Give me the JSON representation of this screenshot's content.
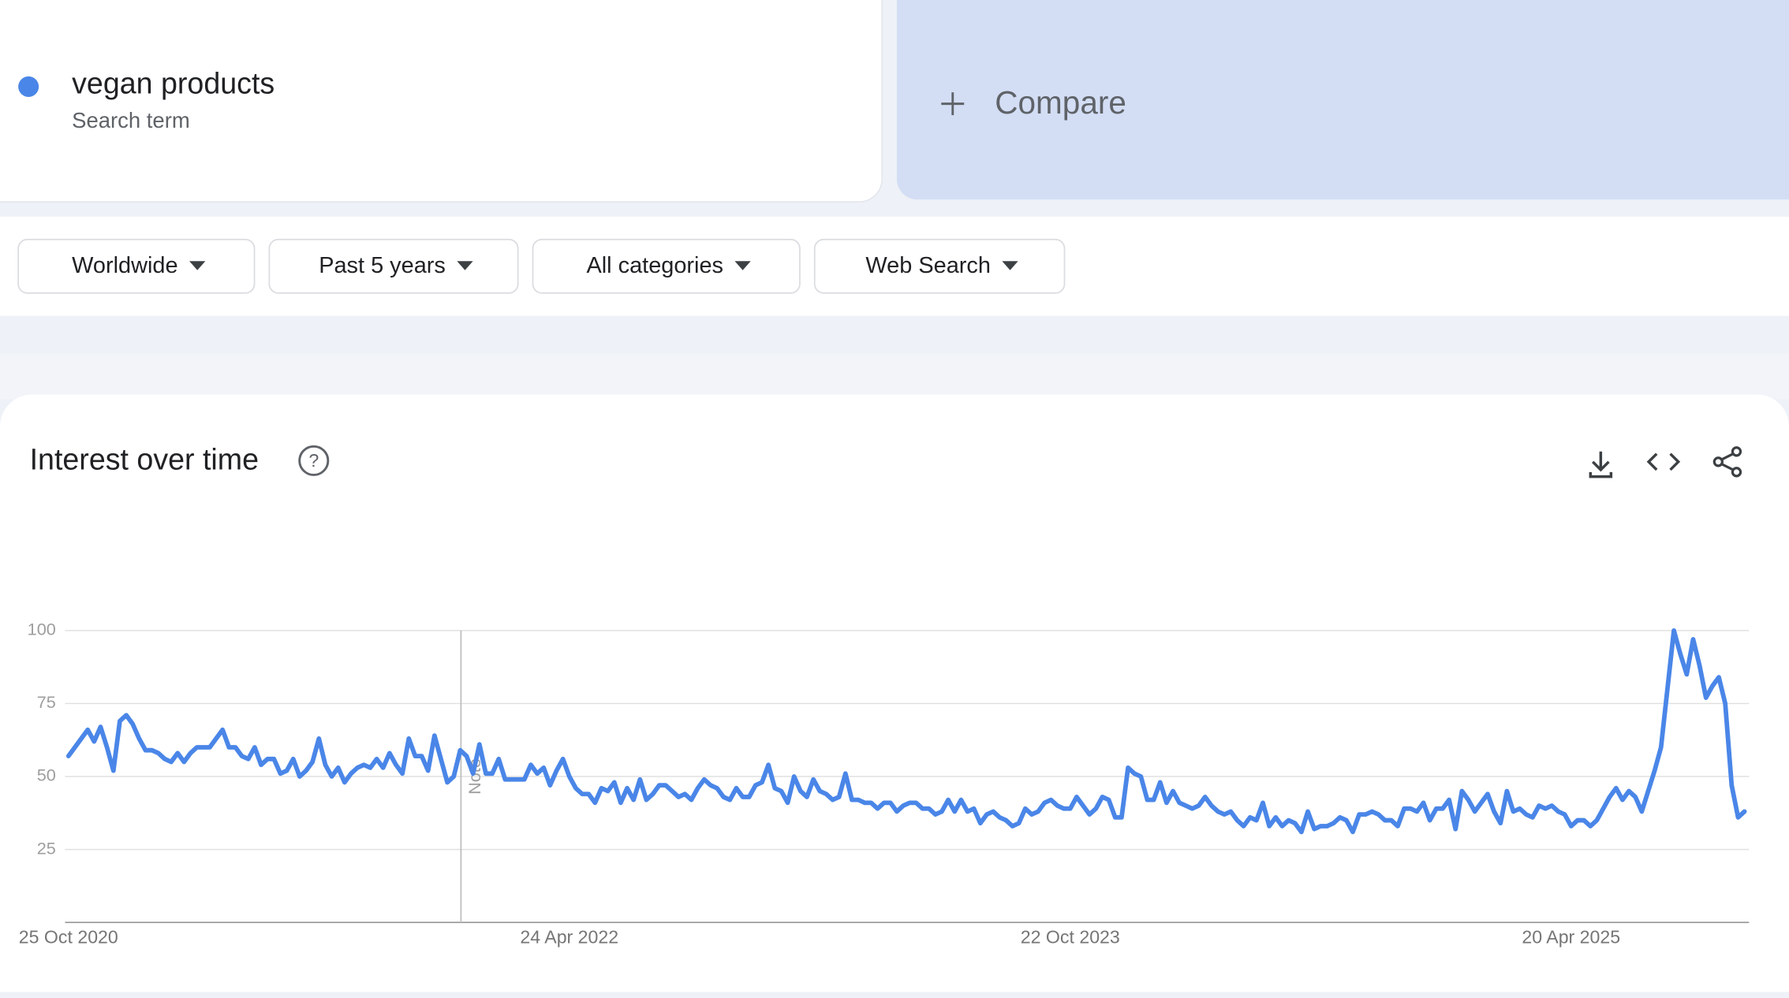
{
  "compare": "Compare",
  "search_term_label": "Search term",
  "filters": [
    "Worldwide",
    "Past 5 years",
    "All categories",
    "Web Search"
  ],
  "chart_data": {
    "type": "line",
    "title": "Interest over time",
    "annotation": "Note",
    "ylim": [
      0,
      100
    ],
    "yticks": [
      25,
      50,
      75,
      100
    ],
    "grid": true,
    "categories": [
      "25 Oct 2020",
      null,
      null,
      null,
      null,
      null,
      null,
      null,
      null,
      null,
      null,
      null,
      null,
      null,
      null,
      null,
      null,
      null,
      null,
      null,
      null,
      null,
      null,
      null,
      null,
      null,
      null,
      null,
      null,
      null,
      null,
      null,
      null,
      null,
      null,
      null,
      null,
      null,
      null,
      null,
      null,
      null,
      null,
      null,
      null,
      null,
      null,
      null,
      null,
      null,
      null,
      null,
      null,
      null,
      null,
      null,
      null,
      null,
      null,
      null,
      null,
      null,
      null,
      null,
      null,
      null,
      null,
      null,
      null,
      null,
      null,
      null,
      null,
      null,
      null,
      null,
      null,
      null,
      "24 Apr 2022",
      null,
      null,
      null,
      null,
      null,
      null,
      null,
      null,
      null,
      null,
      null,
      null,
      null,
      null,
      null,
      null,
      null,
      null,
      null,
      null,
      null,
      null,
      null,
      null,
      null,
      null,
      null,
      null,
      null,
      null,
      null,
      null,
      null,
      null,
      null,
      null,
      null,
      null,
      null,
      null,
      null,
      null,
      null,
      null,
      null,
      null,
      null,
      null,
      null,
      null,
      null,
      null,
      null,
      null,
      null,
      null,
      null,
      null,
      null,
      null,
      null,
      null,
      null,
      null,
      null,
      null,
      null,
      null,
      null,
      null,
      null,
      null,
      null,
      null,
      null,
      null,
      null,
      "22 Oct 2023",
      null,
      null,
      null,
      null,
      null,
      null,
      null,
      null,
      null,
      null,
      null,
      null,
      null,
      null,
      null,
      null,
      null,
      null,
      null,
      null,
      null,
      null,
      null,
      null,
      null,
      null,
      null,
      null,
      null,
      null,
      null,
      null,
      null,
      null,
      null,
      null,
      null,
      null,
      null,
      null,
      null,
      null,
      null,
      null,
      null,
      null,
      null,
      null,
      null,
      null,
      null,
      null,
      null,
      null,
      null,
      null,
      null,
      null,
      null,
      null,
      null,
      null,
      null,
      null,
      null,
      null,
      null,
      null,
      null,
      null,
      null,
      null,
      null,
      null,
      null,
      null,
      null,
      "20 Apr 2025",
      null,
      null,
      null,
      null,
      null,
      null,
      null,
      null,
      null,
      null,
      null,
      null,
      null,
      null,
      null,
      null,
      null,
      null,
      null,
      null,
      null,
      null,
      null,
      null,
      null,
      null,
      null
    ],
    "series": [
      {
        "name": "vegan products",
        "color": "#4a86e8",
        "values": [
          57,
          60,
          63,
          66,
          62,
          67,
          60,
          52,
          69,
          71,
          68,
          63,
          59,
          59,
          58,
          56,
          55,
          58,
          55,
          58,
          60,
          60,
          60,
          63,
          66,
          60,
          60,
          57,
          56,
          60,
          54,
          56,
          56,
          51,
          52,
          56,
          50,
          52,
          55,
          63,
          54,
          50,
          53,
          48,
          51,
          53,
          54,
          53,
          56,
          53,
          58,
          54,
          51,
          63,
          57,
          57,
          52,
          64,
          56,
          48,
          50,
          59,
          57,
          51,
          61,
          51,
          51,
          56,
          49,
          49,
          49,
          49,
          54,
          51,
          53,
          47,
          52,
          56,
          50,
          46,
          44,
          44,
          41,
          46,
          45,
          48,
          41,
          46,
          42,
          49,
          42,
          44,
          47,
          47,
          45,
          43,
          44,
          42,
          46,
          49,
          47,
          46,
          43,
          42,
          46,
          43,
          43,
          47,
          48,
          54,
          46,
          45,
          41,
          50,
          45,
          43,
          49,
          45,
          44,
          42,
          43,
          51,
          42,
          42,
          41,
          41,
          39,
          41,
          41,
          38,
          40,
          41,
          41,
          39,
          39,
          37,
          38,
          42,
          38,
          42,
          38,
          39,
          34,
          37,
          38,
          36,
          35,
          33,
          34,
          39,
          37,
          38,
          41,
          42,
          40,
          39,
          39,
          43,
          40,
          37,
          39,
          43,
          42,
          36,
          36,
          53,
          51,
          50,
          42,
          42,
          48,
          41,
          45,
          41,
          40,
          39,
          40,
          43,
          40,
          38,
          37,
          38,
          35,
          33,
          36,
          35,
          41,
          33,
          36,
          33,
          35,
          34,
          31,
          38,
          32,
          33,
          33,
          34,
          36,
          35,
          31,
          37,
          37,
          38,
          37,
          35,
          35,
          33,
          39,
          39,
          38,
          41,
          35,
          39,
          39,
          42,
          32,
          45,
          42,
          38,
          41,
          44,
          38,
          34,
          45,
          38,
          39,
          37,
          36,
          40,
          39,
          40,
          38,
          37,
          33,
          35,
          35,
          33,
          35,
          39,
          43,
          46,
          42,
          45,
          43,
          38,
          45,
          52,
          60,
          80,
          100,
          92,
          85,
          97,
          88,
          77,
          81,
          84,
          75,
          47,
          36,
          38
        ]
      }
    ]
  }
}
